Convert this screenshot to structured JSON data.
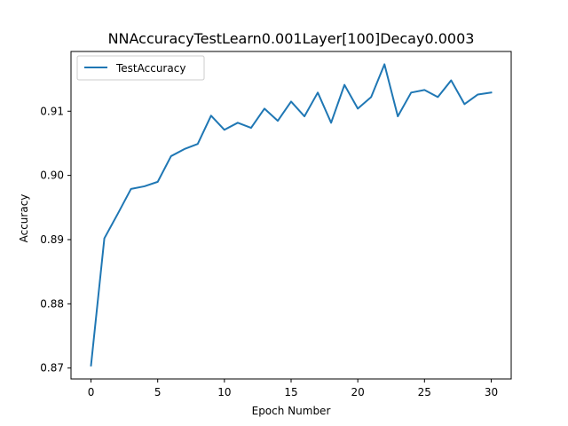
{
  "chart_data": {
    "type": "line",
    "title": "NNAccuracyTestLearn0.001Layer[100]Decay0.0003",
    "xlabel": "Epoch Number",
    "ylabel": "Accuracy",
    "xlim": [
      -1.5,
      31.5
    ],
    "ylim": [
      0.8683,
      0.9193
    ],
    "xticks": [
      0,
      5,
      10,
      15,
      20,
      25,
      30
    ],
    "xtick_labels": [
      "0",
      "5",
      "10",
      "15",
      "20",
      "25",
      "30"
    ],
    "yticks": [
      0.87,
      0.88,
      0.89,
      0.9,
      0.91
    ],
    "ytick_labels": [
      "0.87",
      "0.88",
      "0.89",
      "0.90",
      "0.91"
    ],
    "grid": false,
    "legend_position": "top-left",
    "series": [
      {
        "name": "TestAccuracy",
        "color": "#1f77b4",
        "x": [
          0,
          1,
          2,
          3,
          4,
          5,
          6,
          7,
          8,
          9,
          10,
          11,
          12,
          13,
          14,
          15,
          16,
          17,
          18,
          19,
          20,
          21,
          22,
          23,
          24,
          25,
          26,
          27,
          28,
          29,
          30
        ],
        "y": [
          0.8704,
          0.8902,
          0.894,
          0.8979,
          0.8983,
          0.899,
          0.903,
          0.9041,
          0.9049,
          0.9093,
          0.9071,
          0.9082,
          0.9074,
          0.9104,
          0.9085,
          0.9115,
          0.9092,
          0.9129,
          0.9082,
          0.9141,
          0.9104,
          0.9122,
          0.9173,
          0.9092,
          0.9129,
          0.9133,
          0.9122,
          0.9148,
          0.9111,
          0.9126,
          0.9129
        ]
      }
    ]
  }
}
